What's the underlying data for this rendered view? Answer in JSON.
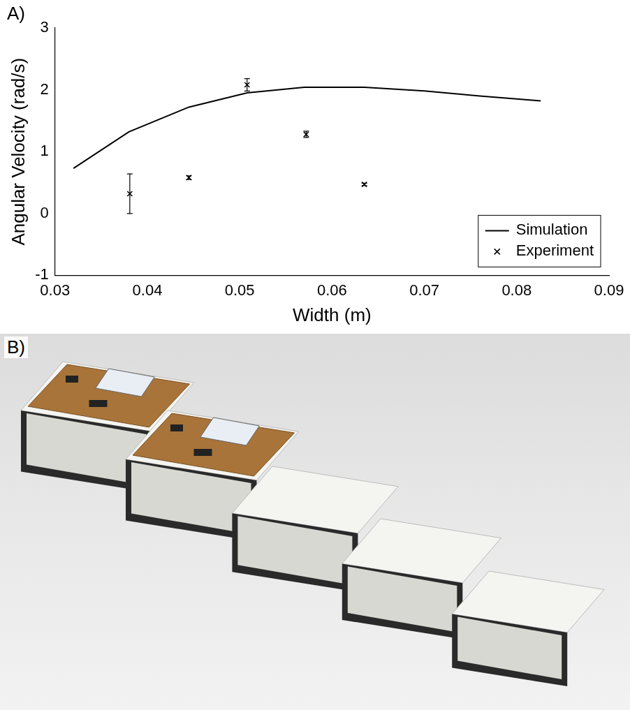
{
  "panel_a_label": "A)",
  "chart_data": {
    "type": "scatter",
    "x_label": "Width (m)",
    "y_label": "Angular Velocity (rad/s)",
    "xlim": [
      0.03,
      0.09
    ],
    "xticks": [
      0.03,
      0.04,
      0.05,
      0.06,
      0.07,
      0.08,
      0.09
    ],
    "ylim": [
      -1,
      3
    ],
    "yticks": [
      -1,
      0,
      1,
      2,
      3
    ],
    "grid": false,
    "legend": "lower right",
    "series": [
      {
        "name": "Simulation",
        "type": "line",
        "color": "#000000",
        "line_style": "solid",
        "marker": "none",
        "x": [
          0.032,
          0.038,
          0.0445,
          0.0508,
          0.057,
          0.0635,
          0.07,
          0.076,
          0.0826
        ],
        "values": [
          0.73,
          1.32,
          1.72,
          1.95,
          2.04,
          2.04,
          1.98,
          1.9,
          1.82
        ]
      },
      {
        "name": "Experiment",
        "type": "scatter",
        "color": "#000000",
        "marker": "x",
        "x": [
          0.0381,
          0.0445,
          0.0508,
          0.0572,
          0.0635
        ],
        "values": [
          0.32,
          0.58,
          2.08,
          1.28,
          0.47
        ],
        "errors": [
          0.32,
          0.03,
          0.1,
          0.05,
          0.02
        ]
      }
    ]
  },
  "photo": {
    "label": "B)"
  }
}
